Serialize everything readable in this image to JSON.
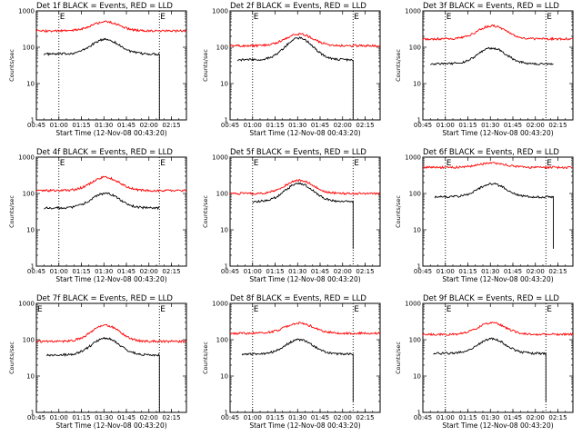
{
  "colors": {
    "events": "#000000",
    "lld": "#ff0000",
    "axes": "#000000",
    "background": "#ffffff"
  },
  "chart_data": [
    {
      "type": "line",
      "title": "Det 1f BLACK = Events, RED = LLD",
      "xlabel": "Start Time (12-Nov-08 00:43:20)",
      "ylabel": "Counts/sec",
      "yscale": "log",
      "ylim": [
        1,
        1000
      ],
      "xlim_min": [
        45,
        145
      ],
      "xticks": [
        "00:45",
        "01:00",
        "01:15",
        "01:30",
        "01:45",
        "02:00",
        "02:15"
      ],
      "yticks": [
        "1",
        "10",
        "100",
        "1000"
      ],
      "markers": [
        "E",
        "E"
      ],
      "marker_min": [
        60,
        127
      ],
      "series": [
        {
          "name": "Events",
          "color": "#000000",
          "start_min": 50,
          "end_min": 127,
          "base": 65,
          "peak": 165,
          "drop_to": 1
        },
        {
          "name": "LLD",
          "color": "#ff0000",
          "start_min": 45,
          "end_min": 145,
          "base": 280,
          "peak": 500
        }
      ]
    },
    {
      "type": "line",
      "title": "Det 2f BLACK = Events, RED = LLD",
      "xlabel": "Start Time (12-Nov-08 00:43:20)",
      "ylabel": "Counts/sec",
      "yscale": "log",
      "ylim": [
        1,
        1000
      ],
      "xlim_min": [
        45,
        145
      ],
      "xticks": [
        "00:45",
        "01:00",
        "01:15",
        "01:30",
        "01:45",
        "02:00",
        "02:15"
      ],
      "yticks": [
        "1",
        "10",
        "100",
        "1000"
      ],
      "markers": [
        "E",
        "E"
      ],
      "marker_min": [
        60,
        127
      ],
      "series": [
        {
          "name": "Events",
          "color": "#000000",
          "start_min": 50,
          "end_min": 127,
          "base": 45,
          "peak": 180,
          "drop_to": 1
        },
        {
          "name": "LLD",
          "color": "#ff0000",
          "start_min": 45,
          "end_min": 145,
          "base": 110,
          "peak": 230
        }
      ]
    },
    {
      "type": "line",
      "title": "Det 3f BLACK = Events, RED = LLD",
      "xlabel": "Start Time (12-Nov-08 00:43:20)",
      "ylabel": "Counts/sec",
      "yscale": "log",
      "ylim": [
        1,
        1000
      ],
      "xlim_min": [
        45,
        145
      ],
      "xticks": [
        "00:45",
        "01:00",
        "01:15",
        "01:30",
        "01:45",
        "02:00",
        "02:15"
      ],
      "yticks": [
        "1",
        "10",
        "100",
        "1000"
      ],
      "markers": [
        "E",
        "E"
      ],
      "marker_min": [
        60,
        127
      ],
      "series": [
        {
          "name": "Events",
          "color": "#000000",
          "start_min": 50,
          "end_min": 132,
          "base": 35,
          "peak": 95,
          "drop_to": null
        },
        {
          "name": "LLD",
          "color": "#ff0000",
          "start_min": 45,
          "end_min": 145,
          "base": 170,
          "peak": 390
        }
      ]
    },
    {
      "type": "line",
      "title": "Det 4f BLACK = Events, RED = LLD",
      "xlabel": "Start Time (12-Nov-08 00:43:20)",
      "ylabel": "Counts/sec",
      "yscale": "log",
      "ylim": [
        1,
        1000
      ],
      "xlim_min": [
        45,
        145
      ],
      "xticks": [
        "00:45",
        "01:00",
        "01:15",
        "01:30",
        "01:45",
        "02:00",
        "02:15"
      ],
      "yticks": [
        "1",
        "10",
        "100",
        "1000"
      ],
      "markers": [
        "E",
        "E"
      ],
      "marker_min": [
        60,
        127
      ],
      "series": [
        {
          "name": "Events",
          "color": "#000000",
          "start_min": 50,
          "end_min": 127,
          "base": 40,
          "peak": 100,
          "drop_to": null
        },
        {
          "name": "LLD",
          "color": "#ff0000",
          "start_min": 45,
          "end_min": 145,
          "base": 120,
          "peak": 280
        }
      ]
    },
    {
      "type": "line",
      "title": "Det 5f BLACK = Events, RED = LLD",
      "xlabel": "Start Time (12-Nov-08 00:43:20)",
      "ylabel": "Counts/sec",
      "yscale": "log",
      "ylim": [
        1,
        1000
      ],
      "xlim_min": [
        45,
        145
      ],
      "xticks": [
        "00:45",
        "01:00",
        "01:15",
        "01:30",
        "01:45",
        "02:00",
        "02:15"
      ],
      "yticks": [
        "1",
        "10",
        "100",
        "1000"
      ],
      "markers": [
        "E",
        "E"
      ],
      "marker_min": [
        60,
        127
      ],
      "series": [
        {
          "name": "Events",
          "color": "#000000",
          "start_min": 60,
          "end_min": 127,
          "base": 60,
          "peak": 190,
          "drop_to": 3
        },
        {
          "name": "LLD",
          "color": "#ff0000",
          "start_min": 45,
          "end_min": 145,
          "base": 100,
          "peak": 230
        }
      ]
    },
    {
      "type": "line",
      "title": "Det 6f BLACK = Events, RED = LLD",
      "xlabel": "Start Time (12-Nov-08 00:43:20)",
      "ylabel": "Counts/sec",
      "yscale": "log",
      "ylim": [
        1,
        1000
      ],
      "xlim_min": [
        45,
        145
      ],
      "xticks": [
        "00:45",
        "01:00",
        "01:15",
        "01:30",
        "01:45",
        "02:00",
        "02:15"
      ],
      "yticks": [
        "1",
        "10",
        "100",
        "1000"
      ],
      "markers": [
        "E",
        "E"
      ],
      "marker_min": [
        60,
        127
      ],
      "series": [
        {
          "name": "Events",
          "color": "#000000",
          "start_min": 53,
          "end_min": 132,
          "base": 80,
          "peak": 185,
          "drop_to": 3
        },
        {
          "name": "LLD",
          "color": "#ff0000",
          "start_min": 45,
          "end_min": 145,
          "base": 520,
          "peak": 680
        }
      ]
    },
    {
      "type": "line",
      "title": "Det 7f BLACK = Events, RED = LLD",
      "xlabel": "Start Time (12-Nov-08 00:43:20)",
      "ylabel": "Counts/sec",
      "yscale": "log",
      "ylim": [
        1,
        1000
      ],
      "xlim_min": [
        45,
        145
      ],
      "xticks": [
        "00:45",
        "01:00",
        "01:15",
        "01:30",
        "01:45",
        "02:00",
        "02:15"
      ],
      "yticks": [
        "1",
        "10",
        "100",
        "1000"
      ],
      "markers": [
        "E",
        "E"
      ],
      "marker_min": [
        45,
        127
      ],
      "series": [
        {
          "name": "Events",
          "color": "#000000",
          "start_min": 52,
          "end_min": 127,
          "base": 38,
          "peak": 110,
          "drop_to": 1
        },
        {
          "name": "LLD",
          "color": "#ff0000",
          "start_min": 45,
          "end_min": 145,
          "base": 90,
          "peak": 250
        }
      ]
    },
    {
      "type": "line",
      "title": "Det 8f BLACK = Events, RED = LLD",
      "xlabel": "Start Time (12-Nov-08 00:43:20)",
      "ylabel": "Counts/sec",
      "yscale": "log",
      "ylim": [
        1,
        1000
      ],
      "xlim_min": [
        45,
        145
      ],
      "xticks": [
        "00:45",
        "01:00",
        "01:15",
        "01:30",
        "01:45",
        "02:00",
        "02:15"
      ],
      "yticks": [
        "1",
        "10",
        "100",
        "1000"
      ],
      "markers": [
        "E",
        "E"
      ],
      "marker_min": [
        60,
        127
      ],
      "series": [
        {
          "name": "Events",
          "color": "#000000",
          "start_min": 53,
          "end_min": 127,
          "base": 40,
          "peak": 100,
          "drop_to": 2
        },
        {
          "name": "LLD",
          "color": "#ff0000",
          "start_min": 45,
          "end_min": 145,
          "base": 150,
          "peak": 290
        }
      ]
    },
    {
      "type": "line",
      "title": "Det 9f BLACK = Events, RED = LLD",
      "xlabel": "Start Time (12-Nov-08 00:43:20)",
      "ylabel": "Counts/sec",
      "yscale": "log",
      "ylim": [
        1,
        1000
      ],
      "xlim_min": [
        45,
        145
      ],
      "xticks": [
        "00:45",
        "01:00",
        "01:15",
        "01:30",
        "01:45",
        "02:00",
        "02:15"
      ],
      "yticks": [
        "1",
        "10",
        "100",
        "1000"
      ],
      "markers": [
        "E",
        "E"
      ],
      "marker_min": [
        60,
        127
      ],
      "series": [
        {
          "name": "Events",
          "color": "#000000",
          "start_min": 52,
          "end_min": 127,
          "base": 42,
          "peak": 105,
          "drop_to": 2
        },
        {
          "name": "LLD",
          "color": "#ff0000",
          "start_min": 45,
          "end_min": 145,
          "base": 140,
          "peak": 290
        }
      ]
    }
  ]
}
